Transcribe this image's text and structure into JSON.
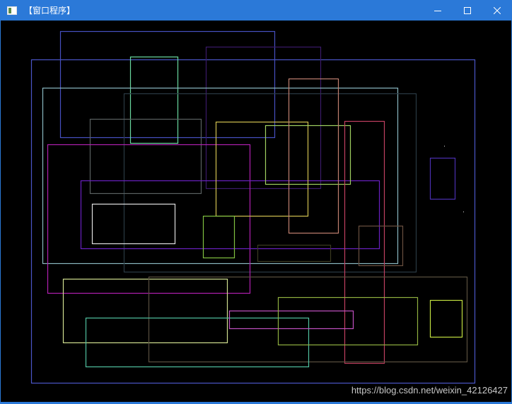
{
  "window": {
    "title": "【窗口程序】",
    "minimize_icon": "minimize-icon",
    "maximize_icon": "maximize-icon",
    "close_icon": "close-icon",
    "titlebar_color": "#2b79d8"
  },
  "canvas": {
    "background": "#000000",
    "rectangle_colors": [
      "#4a56c8",
      "#4650c0",
      "#3a1a6a",
      "#6ad8a0",
      "#8ab8c0",
      "#2a3a44",
      "#5a6060",
      "#b020b0",
      "#6a20c0",
      "#e0e0e0",
      "#d0c050",
      "#a0d060",
      "#c08070",
      "#c04060",
      "#80c040",
      "#3a3a20",
      "#6a5040",
      "#4a30b0",
      "#d0e090",
      "#5a5040",
      "#50c0a0",
      "#c050c0",
      "#90b040",
      "#c0e040"
    ]
  },
  "watermark": "https://blog.csdn.net/weixin_42126427"
}
